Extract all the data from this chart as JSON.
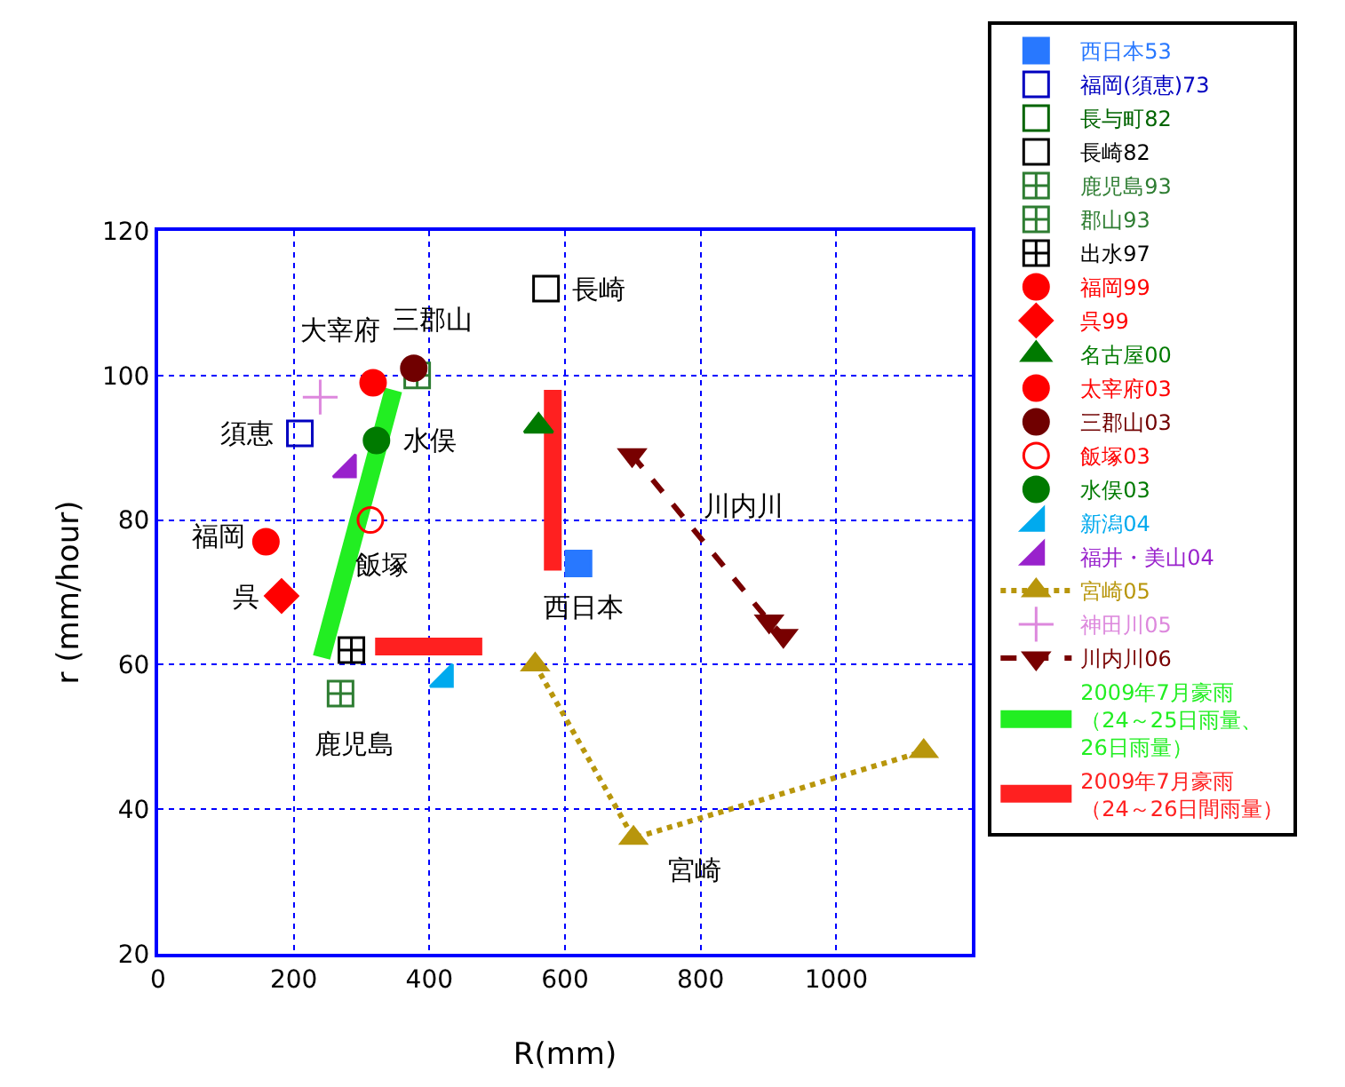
{
  "chart_data": {
    "type": "scatter",
    "xlabel": "R(mm)",
    "ylabel": "r (mm/hour)",
    "xlim": [
      0,
      1200
    ],
    "ylim": [
      20,
      120
    ],
    "xticks": [
      0,
      200,
      400,
      600,
      800,
      1000,
      {
        "value": 1200,
        "label": null
      }
    ],
    "yticks": [
      20,
      40,
      60,
      80,
      100,
      120
    ],
    "grid": true,
    "legend": "right",
    "series": [
      {
        "name": "西日本53",
        "color": "#2878ff",
        "marker": "square",
        "x": [
          620
        ],
        "values": [
          74
        ]
      },
      {
        "name": "福岡(須恵)73",
        "color": "#0000c0",
        "marker": "square-half",
        "x": [
          209
        ],
        "values": [
          92
        ]
      },
      {
        "name": "長与町82",
        "color": "#006400",
        "marker": "square-half",
        "x": [
          null
        ],
        "values": [
          null
        ]
      },
      {
        "name": "長崎82",
        "color": "#000000",
        "marker": "square-half",
        "x": [
          572
        ],
        "values": [
          112
        ]
      },
      {
        "name": "鹿児島93",
        "color": "#2e7d32",
        "marker": "cross",
        "x": [
          269
        ],
        "values": [
          56
        ]
      },
      {
        "name": "郡山93",
        "color": "#2e7d32",
        "marker": "cross",
        "x": [
          382
        ],
        "values": [
          100
        ]
      },
      {
        "name": "出水97",
        "color": "#000000",
        "marker": "cross",
        "x": [
          285
        ],
        "values": [
          62
        ]
      },
      {
        "name": "福岡99",
        "color": "#ff0000",
        "marker": "circle",
        "x": [
          159
        ],
        "values": [
          77
        ]
      },
      {
        "name": "呉99",
        "color": "#ff0000",
        "marker": "diamond",
        "x": [
          182
        ],
        "values": [
          69.5
        ]
      },
      {
        "name": "名古屋00",
        "color": "#007a00",
        "marker": "triangle",
        "x": [
          561
        ],
        "values": [
          93
        ]
      },
      {
        "name": "太宰府03",
        "color": "#ff0000",
        "marker": "circle",
        "x": [
          317
        ],
        "values": [
          99
        ]
      },
      {
        "name": "三郡山03",
        "color": "#700000",
        "marker": "circle",
        "x": [
          377
        ],
        "values": [
          101
        ]
      },
      {
        "name": "飯塚03",
        "color": "#ff0000",
        "marker": "circle-open",
        "x": [
          313
        ],
        "values": [
          80
        ]
      },
      {
        "name": "水俣03",
        "color": "#007a00",
        "marker": "circle",
        "x": [
          322
        ],
        "values": [
          91
        ]
      },
      {
        "name": "新潟04",
        "color": "#00aaee",
        "marker": "triangle-corner",
        "x": [
          423
        ],
        "values": [
          58
        ]
      },
      {
        "name": "福井・美山04",
        "color": "#9922cc",
        "marker": "triangle-corner",
        "x": [
          280
        ],
        "values": [
          87
        ]
      },
      {
        "name": "宮崎05",
        "type": "line",
        "line_style": "dotted",
        "color": "#b8960c",
        "marker": "triangle",
        "x": [
          556,
          701,
          1129
        ],
        "values": [
          60,
          36,
          48
        ]
      },
      {
        "name": "神田川05",
        "color": "#dd88dd",
        "x": [
          239
        ],
        "values": [
          97
        ]
      },
      {
        "name": "川内川06",
        "type": "line",
        "line_style": "dashed",
        "color": "#780000",
        "marker": "triangle-down",
        "x": [
          699,
          901,
          922
        ],
        "values": [
          89,
          66,
          64
        ]
      },
      {
        "name": "2009年7月豪雨（24～25日雨量、26日雨量）",
        "type": "line",
        "line_style": "solid",
        "color": "#22ee22",
        "marker": "none",
        "x": [
          241,
          347
        ],
        "values": [
          61,
          98
        ]
      },
      {
        "name": "2009年7月豪雨（24～26日間雨量）",
        "type": "line",
        "line_style": "solid",
        "color": "#ff2020",
        "marker": "none",
        "x": [
          582,
          582,
          null,
          320,
          478
        ],
        "values": [
          73,
          98,
          null,
          62.5,
          62.5
        ]
      }
    ],
    "annotations": [
      {
        "text": "大宰府",
        "x": 317,
        "y": 99
      },
      {
        "text": "三郡山",
        "x": 377,
        "y": 101
      },
      {
        "text": "長崎",
        "x": 572,
        "y": 112
      },
      {
        "text": "須恵",
        "x": 209,
        "y": 92
      },
      {
        "text": "水俣",
        "x": 322,
        "y": 91
      },
      {
        "text": "福岡",
        "x": 159,
        "y": 77
      },
      {
        "text": "呉",
        "x": 182,
        "y": 69.5
      },
      {
        "text": "飯塚",
        "x": 313,
        "y": 80
      },
      {
        "text": "鹿児島",
        "x": 269,
        "y": 56
      },
      {
        "text": "西日本",
        "x": 620,
        "y": 74
      },
      {
        "text": "川内川",
        "x": 699,
        "y": 89
      },
      {
        "text": "宮崎",
        "x": 701,
        "y": 36
      }
    ]
  }
}
